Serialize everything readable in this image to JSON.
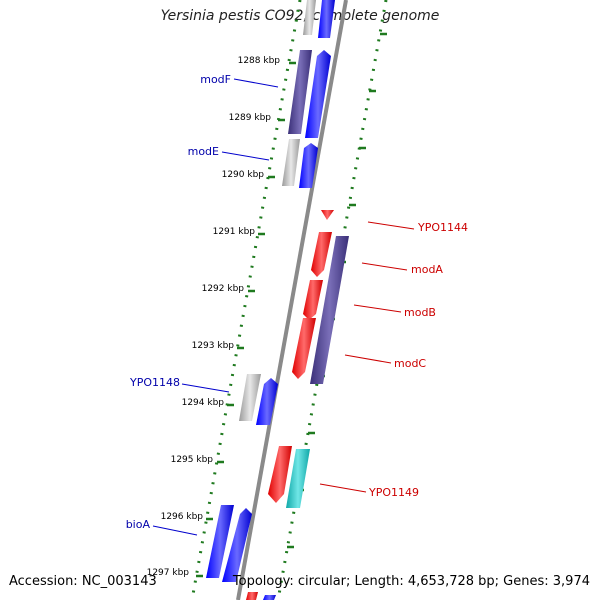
{
  "title": "Yersinia pestis CO92, complete genome",
  "footer": {
    "accession": "Accession: NC_003143",
    "topology": "Topology: circular; Length: 4,653,728 bp; Genes: 3,974"
  },
  "scale": {
    "unit": "kbp",
    "ticks": [
      "1288 kbp",
      "1289 kbp",
      "1290 kbp",
      "1291 kbp",
      "1292 kbp",
      "1293 kbp",
      "1294 kbp",
      "1295 kbp",
      "1296 kbp",
      "1297 kbp"
    ]
  },
  "colors": {
    "forward": "#0000ff",
    "reverse": "#ff0000",
    "purple": "#4a3f8a",
    "gray": "#b8b8b8",
    "cyan": "#22c5c5",
    "ruler": "#1f7a1f",
    "backbone": "#888888"
  },
  "genes": [
    {
      "label": "modF",
      "strand": "left",
      "label_color": "#0000aa"
    },
    {
      "label": "modE",
      "strand": "left",
      "label_color": "#0000aa"
    },
    {
      "label": "YPO1144",
      "strand": "right",
      "label_color": "#cc0000"
    },
    {
      "label": "modA",
      "strand": "right",
      "label_color": "#cc0000"
    },
    {
      "label": "modB",
      "strand": "right",
      "label_color": "#cc0000"
    },
    {
      "label": "modC",
      "strand": "right",
      "label_color": "#cc0000"
    },
    {
      "label": "YPO1148",
      "strand": "left",
      "label_color": "#0000aa"
    },
    {
      "label": "YPO1149",
      "strand": "right",
      "label_color": "#cc0000"
    },
    {
      "label": "bioA",
      "strand": "left",
      "label_color": "#0000aa"
    }
  ]
}
